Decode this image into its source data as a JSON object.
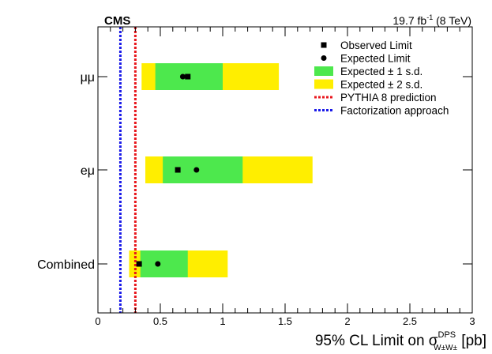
{
  "chart_data": {
    "type": "limit-plot",
    "experiment": "CMS",
    "lumi_main": "19.7 fb",
    "lumi_sup": "-1",
    "lumi_energy": " (8 TeV)",
    "xlabel_prefix": "95% CL Limit on σ",
    "xlabel_sup": "DPS",
    "xlabel_sub": "W±W±",
    "xlabel_suffix": " [pb]",
    "xlim": [
      0,
      3
    ],
    "xticks": [
      0,
      0.5,
      1,
      1.5,
      2,
      2.5,
      3
    ],
    "xtick_labels": [
      "0",
      "0.5",
      "1",
      "1.5",
      "2",
      "2.5",
      "3"
    ],
    "categories": [
      {
        "label": "μμ",
        "observed": 0.72,
        "expected": 0.68,
        "band1": [
          0.46,
          1.0
        ],
        "band2": [
          0.35,
          1.45
        ]
      },
      {
        "label": "eμ",
        "observed": 0.64,
        "expected": 0.79,
        "band1": [
          0.52,
          1.16
        ],
        "band2": [
          0.38,
          1.72
        ]
      },
      {
        "label": "Combined",
        "observed": 0.33,
        "expected": 0.48,
        "band1": [
          0.34,
          0.72
        ],
        "band2": [
          0.25,
          1.04
        ]
      }
    ],
    "pythia_prediction": 0.3,
    "factorization": 0.18,
    "legend": [
      {
        "label": "Observed Limit",
        "kind": "square"
      },
      {
        "label": "Expected Limit",
        "kind": "circle"
      },
      {
        "label": "Expected ± 1 s.d.",
        "kind": "box",
        "color": "#4de84d"
      },
      {
        "label": "Expected ± 2 s.d.",
        "kind": "box",
        "color": "#ffee00"
      },
      {
        "label": "PYTHIA 8 prediction",
        "kind": "dash",
        "color": "#e8161c"
      },
      {
        "label": "Factorization approach",
        "kind": "dash",
        "color": "#1a1ae8"
      }
    ],
    "colors": {
      "band1": "#4de84d",
      "band2": "#ffee00",
      "pythia": "#e8161c",
      "factorization": "#1a1ae8"
    }
  }
}
